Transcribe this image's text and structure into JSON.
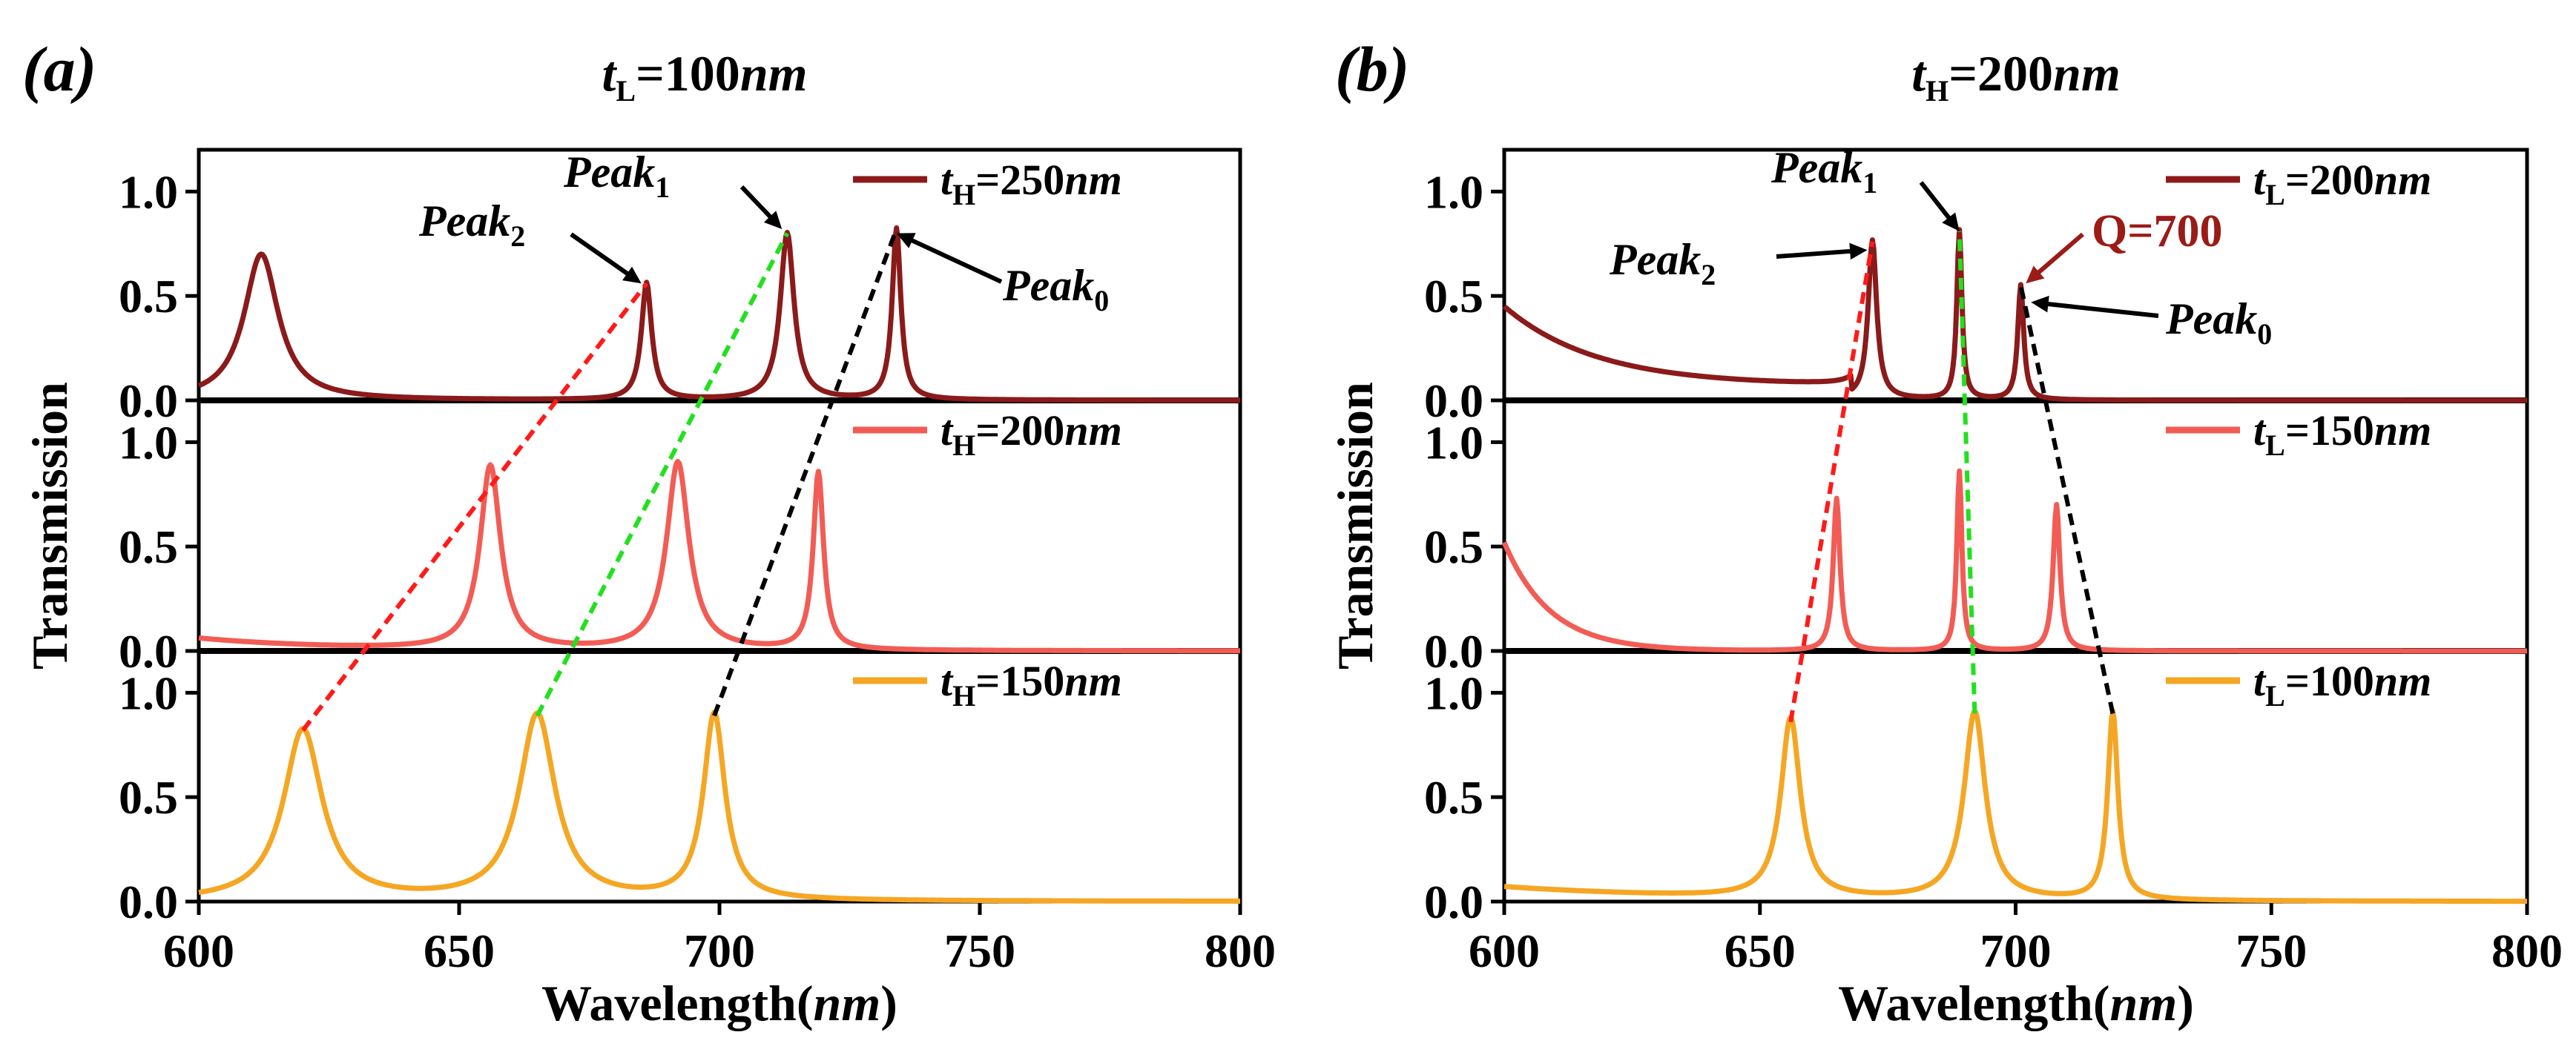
{
  "figure": {
    "panels": [
      {
        "tag": "(a)",
        "title": {
          "var": "t",
          "sub": "L",
          "value": "=100",
          "unit": "nm"
        },
        "xlabel": {
          "main": "Wavelength(",
          "unit": "nm",
          "close": ")"
        },
        "ylabel": "Transmission",
        "xticks": [
          "600",
          "650",
          "700",
          "750",
          "800"
        ],
        "yticks": [
          "0.0",
          "0.5",
          "1.0"
        ],
        "legend": [
          {
            "var": "t",
            "sub": "H",
            "value": "=250",
            "unit": "nm"
          },
          {
            "var": "t",
            "sub": "H",
            "value": "=200",
            "unit": "nm"
          },
          {
            "var": "t",
            "sub": "H",
            "value": "=150",
            "unit": "nm"
          }
        ],
        "annotations": [
          {
            "name": "Peak",
            "sub": "1"
          },
          {
            "name": "Peak",
            "sub": "2"
          },
          {
            "name": "Peak",
            "sub": "0"
          }
        ]
      },
      {
        "tag": "(b)",
        "title": {
          "var": "t",
          "sub": "H",
          "value": "=200",
          "unit": "nm"
        },
        "xlabel": {
          "main": "Wavelength(",
          "unit": "nm",
          "close": ")"
        },
        "ylabel": "Transmission",
        "xticks": [
          "600",
          "650",
          "700",
          "750",
          "800"
        ],
        "yticks": [
          "0.0",
          "0.5",
          "1.0"
        ],
        "legend": [
          {
            "var": "t",
            "sub": "L",
            "value": "=200",
            "unit": "nm"
          },
          {
            "var": "t",
            "sub": "L",
            "value": "=150",
            "unit": "nm"
          },
          {
            "var": "t",
            "sub": "L",
            "value": "=100",
            "unit": "nm"
          }
        ],
        "annotations": [
          {
            "name": "Peak",
            "sub": "1"
          },
          {
            "name": "Peak",
            "sub": "2"
          },
          {
            "name": "Peak",
            "sub": "0"
          },
          {
            "name": "Q=700"
          }
        ]
      }
    ]
  },
  "chart_data": [
    {
      "type": "line",
      "panel": "(a)",
      "xlabel": "Wavelength(nm)",
      "ylabel": "Transmission",
      "xlim": [
        600,
        800
      ],
      "ylim": [
        0,
        1.2
      ],
      "stacked_rows": 3,
      "series": [
        {
          "name": "tH=250nm",
          "row": 0,
          "color": "#8b1a1a",
          "baseline": 0.0,
          "peaks": [
            {
              "x": 612,
              "y": 0.7,
              "w": 4.0
            },
            {
              "x": 686,
              "y": 0.56,
              "w": 1.2
            },
            {
              "x": 713,
              "y": 0.8,
              "w": 1.6
            },
            {
              "x": 734,
              "y": 0.82,
              "w": 1.0
            }
          ]
        },
        {
          "name": "tH=200nm",
          "row": 1,
          "color": "#f25c54",
          "baseline": 0.06,
          "peaks": [
            {
              "x": 656,
              "y": 0.88,
              "w": 2.4
            },
            {
              "x": 692,
              "y": 0.9,
              "w": 2.6
            },
            {
              "x": 719,
              "y": 0.85,
              "w": 1.2
            }
          ]
        },
        {
          "name": "tH=150nm",
          "row": 2,
          "color": "#f5a623",
          "baseline": 0.0,
          "peaks": [
            {
              "x": 620,
              "y": 0.82,
              "w": 4.5
            },
            {
              "x": 665,
              "y": 0.89,
              "w": 4.2
            },
            {
              "x": 699,
              "y": 0.89,
              "w": 2.5
            }
          ]
        }
      ],
      "guide_lines": [
        {
          "color": "#ff1a1a",
          "from": {
            "row": 2,
            "x": 620,
            "y": 0.82
          },
          "to": {
            "row": 0,
            "x": 686,
            "y": 0.56
          }
        },
        {
          "color": "#22e01e",
          "from": {
            "row": 2,
            "x": 665,
            "y": 0.89
          },
          "to": {
            "row": 0,
            "x": 713,
            "y": 0.8
          }
        },
        {
          "color": "#000000",
          "from": {
            "row": 2,
            "x": 699,
            "y": 0.89
          },
          "to": {
            "row": 0,
            "x": 734,
            "y": 0.82
          }
        }
      ]
    },
    {
      "type": "line",
      "panel": "(b)",
      "xlabel": "Wavelength(nm)",
      "ylabel": "Transmission",
      "xlim": [
        600,
        800
      ],
      "ylim": [
        0,
        1.2
      ],
      "stacked_rows": 3,
      "series": [
        {
          "name": "tL=200nm",
          "row": 0,
          "color": "#8b1a1a",
          "baseline": 0.0,
          "peaks": [
            {
              "x": 672,
              "y": 0.76,
              "w": 1.0
            },
            {
              "x": 689,
              "y": 0.81,
              "w": 0.6
            },
            {
              "x": 701,
              "y": 0.55,
              "w": 0.7
            }
          ]
        },
        {
          "name": "tL=150nm",
          "row": 1,
          "color": "#f25c54",
          "baseline": 0.0,
          "peaks": [
            {
              "x": 665,
              "y": 0.73,
              "w": 0.8
            },
            {
              "x": 689,
              "y": 0.86,
              "w": 0.6
            },
            {
              "x": 708,
              "y": 0.7,
              "w": 0.8
            }
          ]
        },
        {
          "name": "tL=100nm",
          "row": 2,
          "color": "#f5a623",
          "baseline": 0.0,
          "peaks": [
            {
              "x": 656,
              "y": 0.86,
              "w": 2.3
            },
            {
              "x": 692,
              "y": 0.9,
              "w": 2.5
            },
            {
              "x": 719,
              "y": 0.9,
              "w": 1.2
            }
          ]
        }
      ],
      "guide_lines": [
        {
          "color": "#ff1a1a",
          "from": {
            "row": 2,
            "x": 656,
            "y": 0.86
          },
          "to": {
            "row": 0,
            "x": 672,
            "y": 0.76
          }
        },
        {
          "color": "#22e01e",
          "from": {
            "row": 2,
            "x": 692,
            "y": 0.9
          },
          "to": {
            "row": 0,
            "x": 689,
            "y": 0.81
          }
        },
        {
          "color": "#000000",
          "from": {
            "row": 2,
            "x": 719,
            "y": 0.9
          },
          "to": {
            "row": 0,
            "x": 701,
            "y": 0.55
          }
        }
      ]
    }
  ]
}
